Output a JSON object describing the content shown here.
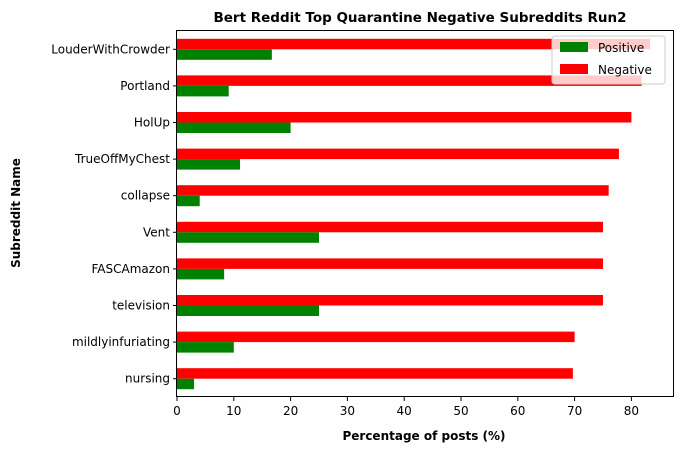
{
  "chart_data": {
    "type": "bar",
    "orientation": "horizontal",
    "title": "Bert Reddit Top Quarantine Negative Subreddits Run2",
    "xlabel": "Percentage of posts (%)",
    "ylabel": "Subreddit Name",
    "xlim": [
      0,
      87.5
    ],
    "xticks": [
      "0",
      "10",
      "20",
      "30",
      "40",
      "50",
      "60",
      "70",
      "80"
    ],
    "grid": false,
    "legend_position": "top-right",
    "categories": [
      "LouderWithCrowder",
      "Portland",
      "HolUp",
      "TrueOffMyChest",
      "collapse",
      "Vent",
      "FASCAmazon",
      "television",
      "mildlyinfuriating",
      "nursing"
    ],
    "series": [
      {
        "name": "Positive",
        "color": "#008000",
        "values": [
          16.7,
          9.1,
          20.0,
          11.1,
          4.0,
          25.0,
          8.3,
          25.0,
          10.0,
          3.0
        ]
      },
      {
        "name": "Negative",
        "color": "#ff0000",
        "values": [
          83.3,
          81.8,
          80.0,
          77.8,
          76.0,
          75.0,
          75.0,
          75.0,
          70.0,
          69.7
        ]
      }
    ]
  }
}
